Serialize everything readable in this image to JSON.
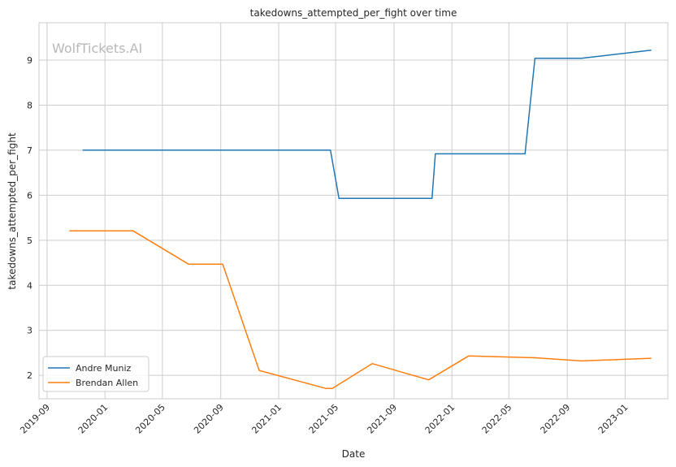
{
  "chart_data": {
    "type": "line",
    "title": "takedowns_attempted_per_fight over time",
    "xlabel": "Date",
    "ylabel": "takedowns_attempted_per_fight",
    "watermark": "WolfTickets.AI",
    "xlim": [
      "2019-08-15",
      "2023-04-01"
    ],
    "ylim": [
      1.48,
      9.83
    ],
    "xticks": [
      "2019-09",
      "2020-01",
      "2020-05",
      "2020-09",
      "2021-01",
      "2021-05",
      "2021-09",
      "2022-01",
      "2022-05",
      "2022-09",
      "2023-01"
    ],
    "yticks": [
      2,
      3,
      4,
      5,
      6,
      7,
      8,
      9
    ],
    "grid": true,
    "legend_position": "lower-left",
    "series": [
      {
        "name": "Andre Muniz",
        "color": "#1f77b4",
        "points": [
          {
            "x": "2019-11-15",
            "y": 7.0
          },
          {
            "x": "2021-04-20",
            "y": 7.0
          },
          {
            "x": "2021-05-08",
            "y": 5.93
          },
          {
            "x": "2021-11-20",
            "y": 5.93
          },
          {
            "x": "2021-11-27",
            "y": 6.92
          },
          {
            "x": "2022-06-04",
            "y": 6.92
          },
          {
            "x": "2022-06-25",
            "y": 9.04
          },
          {
            "x": "2022-10-01",
            "y": 9.04
          },
          {
            "x": "2023-02-25",
            "y": 9.22
          }
        ]
      },
      {
        "name": "Brendan Allen",
        "color": "#ff7f0e",
        "points": [
          {
            "x": "2019-10-18",
            "y": 5.21
          },
          {
            "x": "2020-02-29",
            "y": 5.21
          },
          {
            "x": "2020-06-25",
            "y": 4.47
          },
          {
            "x": "2020-09-05",
            "y": 4.47
          },
          {
            "x": "2020-11-21",
            "y": 2.11
          },
          {
            "x": "2021-04-10",
            "y": 1.71
          },
          {
            "x": "2021-04-24",
            "y": 1.71
          },
          {
            "x": "2021-07-17",
            "y": 2.26
          },
          {
            "x": "2021-11-13",
            "y": 1.9
          },
          {
            "x": "2022-02-05",
            "y": 2.43
          },
          {
            "x": "2022-06-25",
            "y": 2.39
          },
          {
            "x": "2022-10-01",
            "y": 2.32
          },
          {
            "x": "2023-02-25",
            "y": 2.38
          }
        ]
      }
    ]
  }
}
